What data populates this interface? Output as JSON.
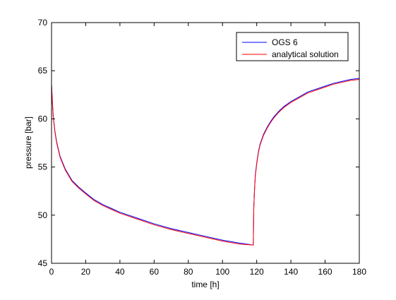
{
  "chart_data": {
    "type": "line",
    "title": "",
    "xlabel": "time [h]",
    "ylabel": "pressure [bar]",
    "xlim": [
      0,
      180
    ],
    "ylim": [
      45,
      70
    ],
    "xticks": [
      0,
      20,
      40,
      60,
      80,
      100,
      120,
      140,
      160,
      180
    ],
    "yticks": [
      45,
      50,
      55,
      60,
      65,
      70
    ],
    "grid": false,
    "legend_position": "top-right",
    "series": [
      {
        "name": "OGS 6",
        "color": "#0000ff",
        "x": [
          0,
          0.5,
          1,
          2,
          3,
          5,
          8,
          12,
          16,
          20,
          25,
          30,
          35,
          40,
          50,
          60,
          70,
          80,
          90,
          100,
          110,
          118,
          118.3,
          118.7,
          119.2,
          120,
          121,
          122,
          124,
          126,
          128,
          130,
          133,
          136,
          140,
          145,
          150,
          155,
          160,
          165,
          170,
          175,
          180
        ],
        "y": [
          63.6,
          61.8,
          60.3,
          58.7,
          57.6,
          56.1,
          54.8,
          53.6,
          52.9,
          52.3,
          51.6,
          51.1,
          50.7,
          50.3,
          49.7,
          49.1,
          48.6,
          48.2,
          47.8,
          47.4,
          47.1,
          46.9,
          50.8,
          52.6,
          54.2,
          55.4,
          56.6,
          57.4,
          58.4,
          59.1,
          59.7,
          60.2,
          60.8,
          61.3,
          61.8,
          62.3,
          62.8,
          63.1,
          63.4,
          63.7,
          63.9,
          64.1,
          64.2
        ]
      },
      {
        "name": "analytical solution",
        "color": "#ff0000",
        "x": [
          0,
          0.5,
          1,
          2,
          3,
          5,
          8,
          12,
          16,
          20,
          25,
          30,
          35,
          40,
          50,
          60,
          70,
          80,
          90,
          100,
          110,
          118,
          118.3,
          118.7,
          119.2,
          120,
          121,
          122,
          124,
          126,
          128,
          130,
          133,
          136,
          140,
          145,
          150,
          155,
          160,
          165,
          170,
          175,
          180
        ],
        "y": [
          63.5,
          61.7,
          60.2,
          58.6,
          57.5,
          56.0,
          54.7,
          53.5,
          52.8,
          52.2,
          51.5,
          51.0,
          50.6,
          50.2,
          49.6,
          49.0,
          48.5,
          48.1,
          47.7,
          47.3,
          47.0,
          46.9,
          50.7,
          52.5,
          54.1,
          55.3,
          56.5,
          57.3,
          58.3,
          59.0,
          59.6,
          60.1,
          60.7,
          61.2,
          61.7,
          62.2,
          62.7,
          63.0,
          63.3,
          63.6,
          63.8,
          64.0,
          64.1
        ]
      }
    ]
  }
}
